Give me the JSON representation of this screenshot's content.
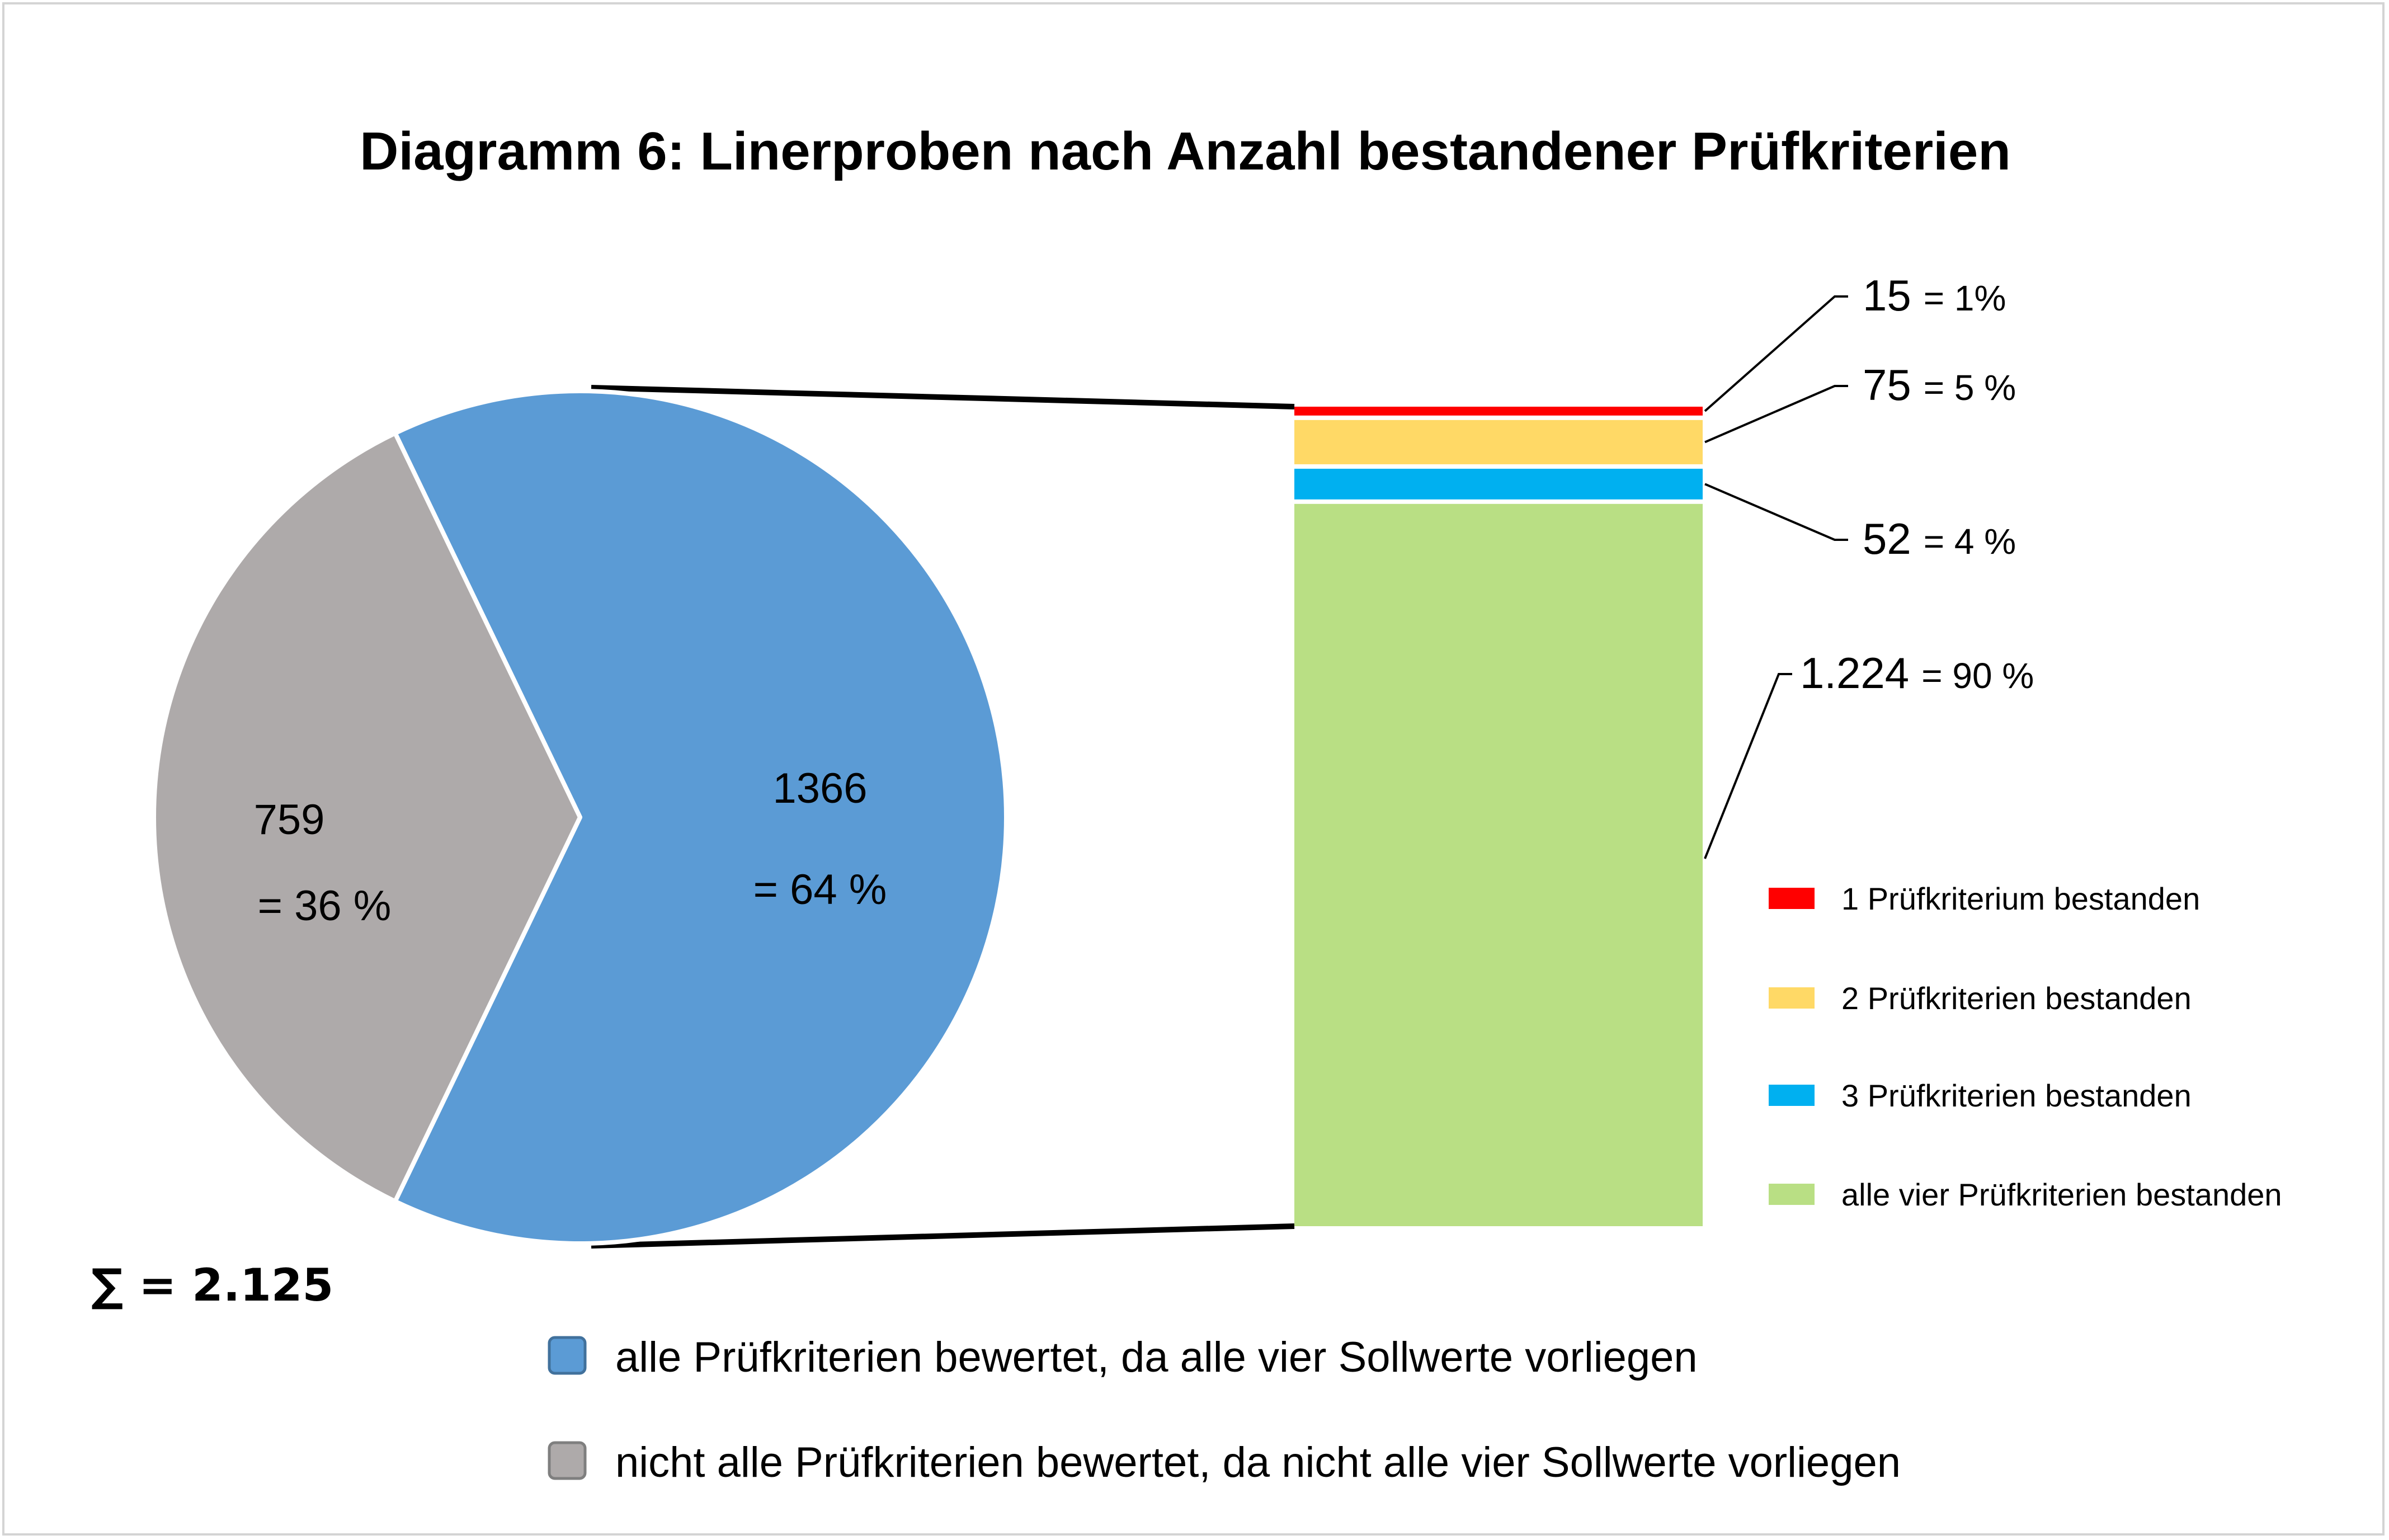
{
  "chart_data": {
    "type": "pie",
    "title": "Diagramm 6: Linerproben nach Anzahl bestandener Prüfkriterien",
    "total_label": "∑ = 2.125",
    "pie": {
      "slices": [
        {
          "value": 1366,
          "label": "1366",
          "pct_label": "= 64 %",
          "color": "#5b9bd5",
          "legend": "alle Prüfkriterien bewertet, da alle vier Sollwerte vorliegen"
        },
        {
          "value": 759,
          "label": "759",
          "pct_label": "= 36 %",
          "color": "#aeaaaa",
          "legend": "nicht alle Prüfkriterien bewertet, da nicht alle vier Sollwerte vorliegen"
        }
      ]
    },
    "breakdown": {
      "type": "bar",
      "stacked": true,
      "of": "1366",
      "segments": [
        {
          "value": 15,
          "label": "15",
          "pct_label": "= 1%",
          "color": "#ff0000",
          "legend": "1 Prüfkriterium bestanden"
        },
        {
          "value": 75,
          "label": "75",
          "pct_label": "= 5 %",
          "color": "#ffd966",
          "legend": "2 Prüfkriterien bestanden"
        },
        {
          "value": 52,
          "label": "52",
          "pct_label": "= 4 %",
          "color": "#00b0f0",
          "legend": "3 Prüfkriterien bestanden"
        },
        {
          "value": 1224,
          "label": "1.224",
          "pct_label": "= 90 %",
          "color": "#b9df84",
          "legend": "alle vier Prüfkriterien bestanden"
        }
      ]
    }
  }
}
